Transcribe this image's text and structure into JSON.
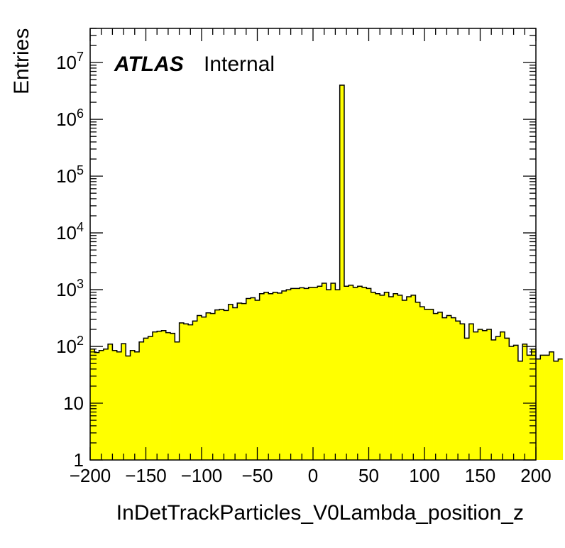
{
  "chart_data": {
    "type": "histogram",
    "title": "",
    "xlabel": "InDetTrackParticles_V0Lambda_position_z",
    "ylabel": "Entries",
    "xlim": [
      -200,
      200
    ],
    "ylim": [
      1,
      40000000
    ],
    "y_scale": "log",
    "grid": false,
    "legend": "none",
    "bin_width": 4,
    "fill_color": "#ffff00",
    "line_color": "#000000",
    "experiment_label": "ATLAS",
    "status_label": "Internal",
    "x_tick_labels": [
      "−200",
      "−150",
      "−100",
      "−50",
      "0",
      "50",
      "100",
      "150",
      "200"
    ],
    "x_tick_values": [
      -200,
      -150,
      -100,
      -50,
      0,
      50,
      100,
      150,
      200
    ],
    "y_tick_values": [
      1,
      10,
      100,
      1000,
      10000,
      100000,
      1000000,
      10000000
    ],
    "y_tick_labels": [
      {
        "base": "1",
        "exp": ""
      },
      {
        "base": "10",
        "exp": ""
      },
      {
        "base": "10",
        "exp": "2"
      },
      {
        "base": "10",
        "exp": "3"
      },
      {
        "base": "10",
        "exp": "4"
      },
      {
        "base": "10",
        "exp": "5"
      },
      {
        "base": "10",
        "exp": "6"
      },
      {
        "base": "10",
        "exp": "7"
      }
    ],
    "bin_edges_start": -200,
    "values": [
      90,
      78,
      85,
      90,
      110,
      85,
      80,
      112,
      68,
      85,
      80,
      120,
      140,
      150,
      180,
      185,
      190,
      175,
      170,
      120,
      260,
      250,
      240,
      280,
      350,
      330,
      390,
      380,
      440,
      450,
      430,
      550,
      480,
      580,
      570,
      700,
      720,
      650,
      850,
      900,
      850,
      900,
      870,
      950,
      1000,
      1050,
      1050,
      1080,
      1050,
      1100,
      1100,
      1150,
      1300,
      1000,
      1300,
      1000,
      4000000,
      1150,
      1200,
      1100,
      1150,
      1100,
      1050,
      900,
      850,
      800,
      900,
      750,
      850,
      800,
      650,
      750,
      800,
      600,
      500,
      450,
      450,
      380,
      400,
      320,
      350,
      320,
      280,
      250,
      140,
      250,
      180,
      200,
      190,
      200,
      130,
      150,
      180,
      140,
      100,
      105,
      55,
      110,
      70,
      90,
      60,
      70,
      70,
      80,
      55,
      60
    ]
  }
}
